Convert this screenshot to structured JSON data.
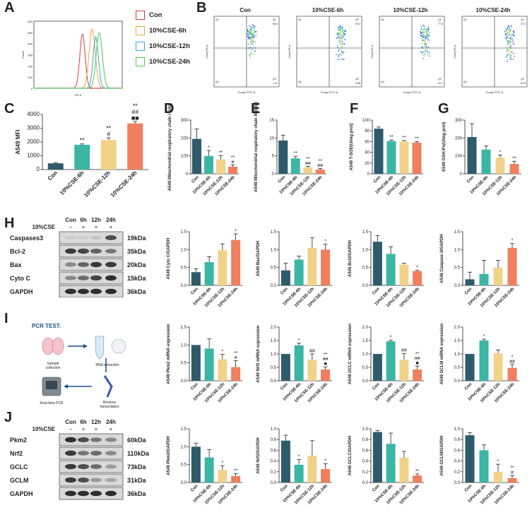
{
  "panels": {
    "A": "A",
    "B": "B",
    "C": "C",
    "D": "D",
    "E": "E",
    "F": "F",
    "G": "G",
    "H": "H",
    "I": "I",
    "J": "J"
  },
  "colors": {
    "con": "#2e5b6b",
    "h6": "#3bb6a5",
    "h12": "#f2d28a",
    "h24": "#ef7f5e",
    "flow_con": "#d93b3b",
    "flow_6": "#e8a33d",
    "flow_12": "#3ba5e0",
    "flow_24": "#4fc94f"
  },
  "groups": [
    "Con",
    "10%CSE-6h",
    "10%CSE-12h",
    "10%CSE-24h"
  ],
  "flow_legend": [
    "Con",
    "10%CSE-6h",
    "10%CSE-12h",
    "10%CSE-24h"
  ],
  "flow_axis": {
    "x": "PE-A",
    "y": "Count",
    "ticks": [
      "0",
      "100",
      "200",
      "300",
      "400",
      "500",
      "600"
    ]
  },
  "scatter": {
    "titles": [
      "Con",
      "10%CSE-6h",
      "10%CSE-12h",
      "10%CSE-24h"
    ],
    "xlabel": "Comp-FITC-A",
    "ylabel": "Comp-PE-A",
    "quads": [
      {
        "q1": "Q1",
        "q2": "Q2",
        "q3": "Q3",
        "q4": "Q4",
        "v2": "98.5",
        "v3": "1.41"
      },
      {
        "q1": "Q1",
        "q2": "Q2",
        "q3": "Q3",
        "q4": "Q4",
        "v2": "95.3",
        "v3": "4.68"
      },
      {
        "q1": "Q1",
        "q2": "Q2",
        "q3": "Q3",
        "q4": "Q4",
        "v2": "77.8",
        "v3": "22.1"
      },
      {
        "q1": "Q1",
        "q2": "Q2",
        "q3": "Q3",
        "q4": "Q4",
        "v2": "37.2",
        "v3": "62.8"
      }
    ]
  },
  "chart_data": [
    {
      "id": "C",
      "type": "bar",
      "ylabel": "A549 MFI",
      "ylim": [
        0,
        4000
      ],
      "ticks": [
        "0",
        "1000",
        "2000",
        "3000",
        "4000"
      ],
      "values": [
        450,
        1800,
        2150,
        3350
      ],
      "errors": [
        40,
        60,
        150,
        150
      ],
      "marks": [
        "",
        "**",
        "**\n#",
        "**\n##\n■■"
      ]
    },
    {
      "id": "D",
      "type": "bar",
      "ylabel": "A549 Mitochondrial respiratory chain I (U/g)",
      "ylim": [
        0,
        300
      ],
      "ticks": [
        "0",
        "100",
        "200",
        "300"
      ],
      "values": [
        195,
        100,
        80,
        40
      ],
      "errors": [
        55,
        30,
        22,
        10
      ],
      "marks": [
        "",
        "*",
        "**",
        "**\n#"
      ]
    },
    {
      "id": "E",
      "type": "bar",
      "ylabel": "A549 Mitochondrial respiratory chain III (U/g)",
      "ylim": [
        0,
        15
      ],
      "ticks": [
        "0",
        "5",
        "10",
        "15"
      ],
      "values": [
        9.3,
        4.3,
        1.8,
        1.2
      ],
      "errors": [
        1.5,
        0.6,
        0.3,
        0.3
      ],
      "marks": [
        "",
        "**",
        "**\n##",
        "**\n##"
      ]
    },
    {
      "id": "F",
      "type": "bar",
      "ylabel": "A549 T-SOD(U/mg prot)",
      "ylim": [
        0,
        100
      ],
      "ticks": [
        "0",
        "20",
        "40",
        "60",
        "80",
        "100"
      ],
      "values": [
        84,
        61,
        60,
        58
      ],
      "errors": [
        3,
        2,
        2,
        2
      ],
      "marks": [
        "",
        "**",
        "**",
        "**"
      ]
    },
    {
      "id": "G",
      "type": "bar",
      "ylabel": "A549 GSH-Px(U/mg prot)",
      "ylim": [
        0,
        300
      ],
      "ticks": [
        "0",
        "100",
        "200",
        "300"
      ],
      "values": [
        205,
        135,
        90,
        55
      ],
      "errors": [
        75,
        20,
        15,
        15
      ],
      "marks": [
        "",
        "",
        "*",
        "**"
      ]
    },
    {
      "id": "H1",
      "type": "bar",
      "ylabel": "A549 Cyto C/GAPDH",
      "ylim": [
        0,
        1.5
      ],
      "ticks": [
        "0.0",
        "0.5",
        "1.0",
        "1.5"
      ],
      "values": [
        0.37,
        0.65,
        0.98,
        1.27
      ],
      "errors": [
        0.1,
        0.15,
        0.18,
        0.17
      ],
      "marks": [
        "",
        "",
        "",
        "*"
      ]
    },
    {
      "id": "H2",
      "type": "bar",
      "ylabel": "A549 Bax/GAPDH",
      "ylim": [
        0,
        1.5
      ],
      "ticks": [
        "0.0",
        "0.5",
        "1.0",
        "1.5"
      ],
      "values": [
        0.42,
        0.72,
        1.05,
        1.0
      ],
      "errors": [
        0.2,
        0.1,
        0.28,
        0.15
      ],
      "marks": [
        "",
        "",
        "",
        "*"
      ]
    },
    {
      "id": "H3",
      "type": "bar",
      "ylabel": "A549 Bcl2/GAPDH",
      "ylim": [
        0,
        1.5
      ],
      "ticks": [
        "0.0",
        "0.5",
        "1.0",
        "1.5"
      ],
      "values": [
        1.22,
        0.88,
        0.58,
        0.4
      ],
      "errors": [
        0.17,
        0.2,
        0.04,
        0.02
      ],
      "marks": [
        "",
        "",
        "",
        "*"
      ]
    },
    {
      "id": "H4",
      "type": "bar",
      "ylabel": "A549 Caspase-3/GAPDH",
      "ylim": [
        0,
        1.5
      ],
      "ticks": [
        "0.0",
        "0.5",
        "1.0",
        "1.5"
      ],
      "values": [
        0.17,
        0.32,
        0.5,
        1.05
      ],
      "errors": [
        0.2,
        0.38,
        0.2,
        0.12
      ],
      "marks": [
        "",
        "",
        "",
        "*"
      ]
    },
    {
      "id": "I1",
      "type": "bar",
      "ylabel": "A549 Pkm2 mRNA expression",
      "ylim": [
        0,
        1.5
      ],
      "ticks": [
        "0.0",
        "0.5",
        "1.0",
        "1.5"
      ],
      "values": [
        1.0,
        0.9,
        0.6,
        0.38
      ],
      "errors": [
        0,
        0.27,
        0.14,
        0.18
      ],
      "marks": [
        "",
        "",
        "*",
        "**\n#"
      ]
    },
    {
      "id": "I2",
      "type": "bar",
      "ylabel": "A549 Nrf2 mRNA expression",
      "ylim": [
        0,
        2.0
      ],
      "ticks": [
        "0.0",
        "0.5",
        "1.0",
        "1.5",
        "2.0"
      ],
      "values": [
        1.0,
        1.32,
        0.78,
        0.42
      ],
      "errors": [
        0,
        0.08,
        0.22,
        0.1
      ],
      "marks": [
        "",
        "*",
        "##",
        "**\n##\n■"
      ]
    },
    {
      "id": "I3",
      "type": "bar",
      "ylabel": "A549 GCLC mRNA expression",
      "ylim": [
        0,
        2.0
      ],
      "ticks": [
        "0.0",
        "0.5",
        "1.0",
        "1.5",
        "2.0"
      ],
      "values": [
        1.0,
        1.47,
        0.78,
        0.42
      ],
      "errors": [
        0,
        0.04,
        0.24,
        0.13
      ],
      "marks": [
        "",
        "*",
        "##",
        "**\n##\n■"
      ]
    },
    {
      "id": "I4",
      "type": "bar",
      "ylabel": "A549 GCLM mRNA expression",
      "ylim": [
        0,
        2.0
      ],
      "ticks": [
        "0.0",
        "0.5",
        "1.0",
        "1.5",
        "2.0"
      ],
      "values": [
        1.0,
        1.5,
        1.02,
        0.48
      ],
      "errors": [
        0,
        0.05,
        0.13,
        0.13
      ],
      "marks": [
        "",
        "*",
        "",
        "*\n##"
      ]
    },
    {
      "id": "J1",
      "type": "bar",
      "ylabel": "A549 Pkm2/GAPDH",
      "ylim": [
        0,
        1.5
      ],
      "ticks": [
        "0.0",
        "0.5",
        "1.0",
        "1.5"
      ],
      "values": [
        1.0,
        0.7,
        0.35,
        0.18
      ],
      "errors": [
        0.1,
        0.22,
        0.12,
        0.07
      ],
      "marks": [
        "",
        "",
        "*",
        "**"
      ]
    },
    {
      "id": "J2",
      "type": "bar",
      "ylabel": "A549 Nrf2/GAPDH",
      "ylim": [
        0,
        1.0
      ],
      "ticks": [
        "0.0",
        "0.2",
        "0.4",
        "0.6",
        "0.8",
        "1.0"
      ],
      "values": [
        0.78,
        0.33,
        0.5,
        0.25
      ],
      "errors": [
        0.1,
        0.1,
        0.28,
        0.1
      ],
      "marks": [
        "",
        "*",
        "",
        "*"
      ]
    },
    {
      "id": "J3",
      "type": "bar",
      "ylabel": "A549 GCLC/GAPDH",
      "ylim": [
        0,
        1.0
      ],
      "ticks": [
        "0.0",
        "0.2",
        "0.4",
        "0.6",
        "0.8",
        "1.0"
      ],
      "values": [
        0.94,
        0.72,
        0.46,
        0.13
      ],
      "errors": [
        0.03,
        0.2,
        0.12,
        0.03
      ],
      "marks": [
        "",
        "",
        "",
        "**"
      ]
    },
    {
      "id": "J4",
      "type": "bar",
      "ylabel": "A549 GCLM/GAPDH",
      "ylim": [
        0,
        1.0
      ],
      "ticks": [
        "0.0",
        "0.2",
        "0.4",
        "0.6",
        "0.8",
        "1.0"
      ],
      "values": [
        0.88,
        0.6,
        0.2,
        0.08
      ],
      "errors": [
        0.05,
        0.1,
        0.14,
        0.05
      ],
      "marks": [
        "",
        "",
        "*",
        "**\n#"
      ]
    }
  ],
  "blotH": {
    "header_times": [
      "Con",
      "6h",
      "12h",
      "24h"
    ],
    "cse_label": "10%CSE",
    "signs": [
      "–",
      "+",
      "+",
      "+"
    ],
    "rows": [
      {
        "name": "Caspases3",
        "kda": "19kDa"
      },
      {
        "name": "Bcl-2",
        "kda": "35kDa"
      },
      {
        "name": "Bax",
        "kda": "20kDa"
      },
      {
        "name": "Cyto C",
        "kda": "15kDa"
      },
      {
        "name": "GAPDH",
        "kda": "36kDa"
      }
    ]
  },
  "blotJ": {
    "header_times": [
      "Con",
      "6h",
      "12h",
      "24h"
    ],
    "cse_label": "10%CSE",
    "signs": [
      "–",
      "+",
      "+",
      "+"
    ],
    "rows": [
      {
        "name": "Pkm2",
        "kda": "60kDa"
      },
      {
        "name": "Nrf2",
        "kda": "110kDa"
      },
      {
        "name": "GCLC",
        "kda": "73kDa"
      },
      {
        "name": "GCLM",
        "kda": "31kDa"
      },
      {
        "name": "GAPDH",
        "kda": "36kDa"
      }
    ]
  },
  "pcr": {
    "title": "PCR TEST:",
    "steps": [
      "Sample collection",
      "RNA extraction",
      "Real-time PCR",
      "Reverse transcription"
    ]
  }
}
